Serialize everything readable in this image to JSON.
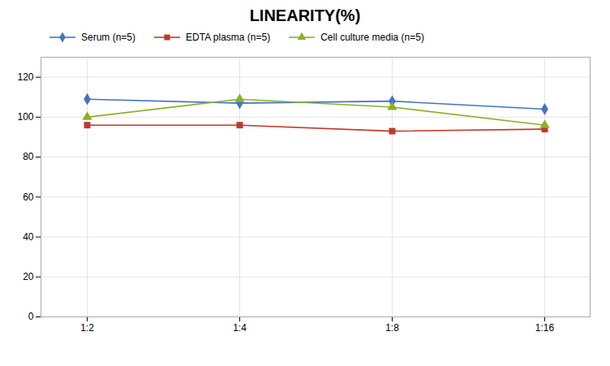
{
  "chart_data": {
    "type": "line",
    "title": "LINEARITY(%)",
    "categories": [
      "1:2",
      "1:4",
      "1:8",
      "1:16"
    ],
    "series": [
      {
        "name": "Serum (n=5)",
        "color": "#4472C4",
        "marker": "diamond",
        "values": [
          109,
          107,
          108,
          104
        ]
      },
      {
        "name": "EDTA plasma (n=5)",
        "color": "#C0392B",
        "marker": "square",
        "values": [
          96,
          96,
          93,
          94
        ]
      },
      {
        "name": "Cell culture media (n=5)",
        "color": "#8DB026",
        "marker": "triangle",
        "values": [
          100,
          109,
          105,
          96
        ]
      }
    ],
    "ylim": [
      0,
      130
    ],
    "yticks": [
      0,
      20,
      40,
      60,
      80,
      100,
      120
    ],
    "grid": true,
    "legend": "top"
  }
}
